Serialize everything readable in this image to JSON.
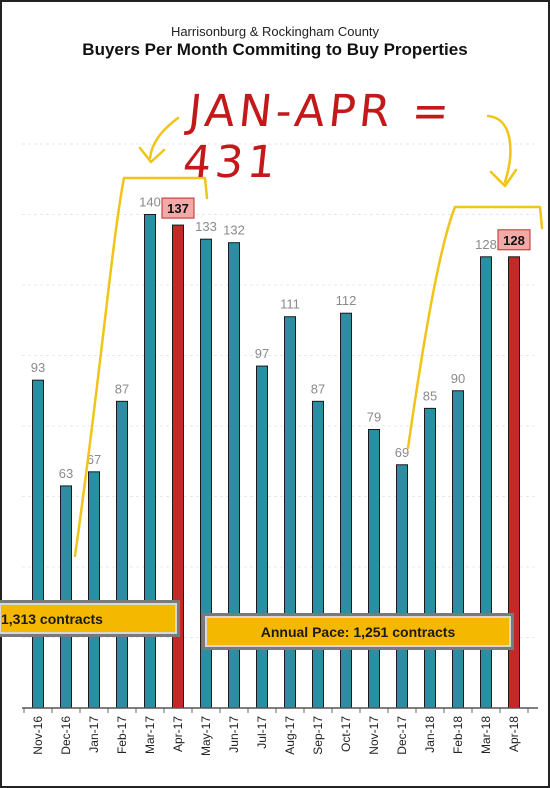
{
  "subtitle": "Harrisonburg & Rockingham County",
  "title": "Buyers Per Month Commiting to Buy Properties",
  "handwritten_note": "JAN-APR = 431",
  "annotations": {
    "left_box": "1,313 contracts",
    "right_box": "Annual Pace: 1,251 contracts"
  },
  "colors": {
    "bar": "#2b8ea3",
    "highlight_bar": "#c62828",
    "highlight_label_bg": "#f4a9a9",
    "marker": "#f0c419",
    "note": "#c21a1a",
    "box": "#f5b800"
  },
  "chart_data": {
    "type": "bar",
    "title": "Buyers Per Month Commiting to Buy Properties",
    "subtitle": "Harrisonburg & Rockingham County",
    "categories": [
      "Nov-16",
      "Dec-16",
      "Jan-17",
      "Feb-17",
      "Mar-17",
      "Apr-17",
      "May-17",
      "Jun-17",
      "Jul-17",
      "Aug-17",
      "Sep-17",
      "Oct-17",
      "Nov-17",
      "Dec-17",
      "Jan-18",
      "Feb-18",
      "Mar-18",
      "Apr-18"
    ],
    "values": [
      93,
      63,
      67,
      87,
      140,
      137,
      133,
      132,
      97,
      111,
      87,
      112,
      79,
      69,
      85,
      90,
      128,
      128
    ],
    "highlighted": [
      "Apr-17",
      "Apr-18"
    ],
    "ylim": [
      0,
      160
    ],
    "grid": true,
    "xlabel": "",
    "ylabel": ""
  }
}
